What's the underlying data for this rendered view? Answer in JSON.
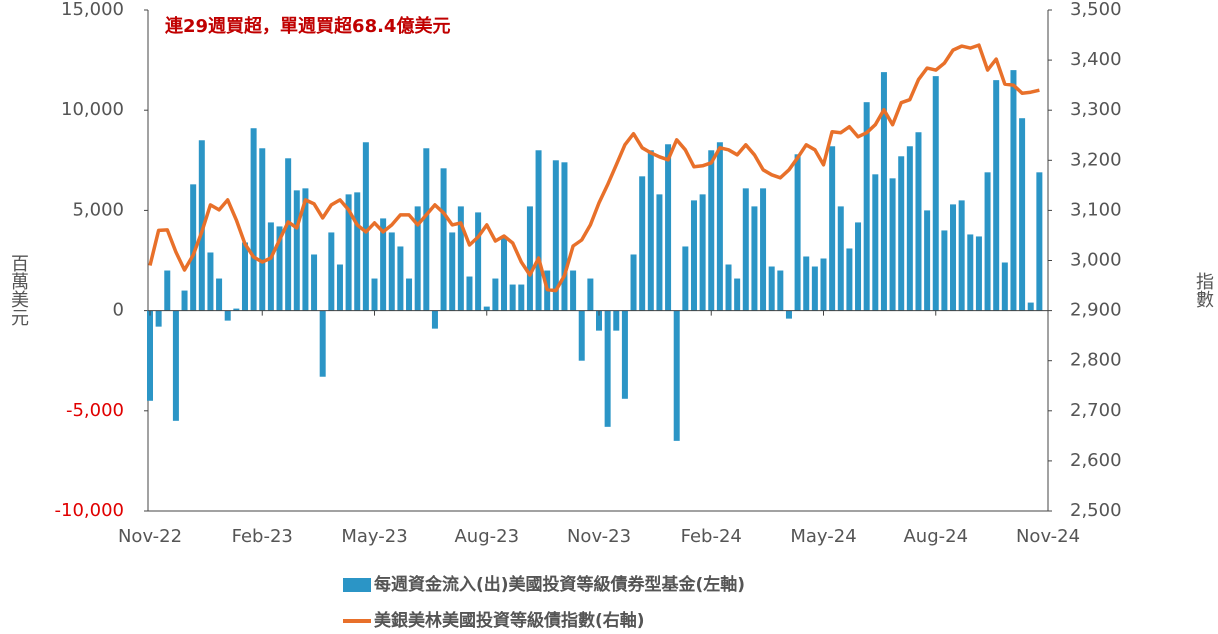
{
  "chart_data": {
    "type": "bar_line",
    "annotation": "連29週買超，單週買超68.4億美元",
    "ylabel": "百萬美元",
    "y2label": "指數",
    "categories": [
      "Nov-22",
      null,
      null,
      null,
      null,
      null,
      null,
      null,
      null,
      null,
      null,
      null,
      null,
      "Feb-23",
      null,
      null,
      null,
      null,
      null,
      null,
      null,
      null,
      null,
      null,
      null,
      null,
      "May-23",
      null,
      null,
      null,
      null,
      null,
      null,
      null,
      null,
      null,
      null,
      null,
      null,
      "Aug-23",
      null,
      null,
      null,
      null,
      null,
      null,
      null,
      null,
      null,
      null,
      null,
      null,
      "Nov-23",
      null,
      null,
      null,
      null,
      null,
      null,
      null,
      null,
      null,
      null,
      null,
      null,
      "Feb-24",
      null,
      null,
      null,
      null,
      null,
      null,
      null,
      null,
      null,
      null,
      null,
      null,
      "May-24",
      null,
      null,
      null,
      null,
      null,
      null,
      null,
      null,
      null,
      null,
      null,
      null,
      "Aug-24",
      null,
      null,
      null,
      null,
      null,
      null,
      null,
      null,
      null,
      null,
      null,
      null,
      "Nov-24"
    ],
    "series": [
      {
        "name": "每週資金流入(出)美國投資等級債券型基金(左軸)",
        "type": "bar",
        "color": "#2b95c6",
        "values": [
          -4500,
          -800,
          2000,
          -5500,
          1000,
          6300,
          8500,
          2900,
          1600,
          -500,
          100,
          3400,
          9100,
          8100,
          4400,
          4200,
          7600,
          6000,
          6100,
          2800,
          -3300,
          3900,
          2300,
          5800,
          5900,
          8400,
          1600,
          4600,
          3900,
          3200,
          1600,
          5200,
          8100,
          -900,
          7100,
          3900,
          5200,
          1700,
          4900,
          200,
          1600,
          3700,
          1300,
          1300,
          5200,
          8000,
          2000,
          7500,
          7400,
          2000,
          -2500,
          1600,
          -1000,
          -5800,
          -1000,
          -4400,
          2800,
          6700,
          8000,
          5800,
          8300,
          -6500,
          3200,
          5500,
          5800,
          8000,
          8400,
          2300,
          1600,
          6100,
          5200,
          6100,
          2200,
          2000,
          -400,
          7800,
          2700,
          2200,
          2600,
          8200,
          5200,
          3100,
          4400,
          10400,
          6800,
          11900,
          6600,
          7700,
          8200,
          8900,
          5000,
          11700,
          4000,
          5300,
          5500,
          3800,
          3700,
          6900,
          11500,
          2400,
          12000,
          9600,
          400,
          6900,
          null
        ]
      },
      {
        "name": "美銀美林美國投資等級債指數(右軸)",
        "type": "line",
        "axis": "y2",
        "color": "#e8702a",
        "values": [
          2990,
          3060,
          3061,
          3017,
          2981,
          3011,
          3057,
          3111,
          3101,
          3121,
          3081,
          3033,
          3007,
          2997,
          3005,
          3041,
          3077,
          3065,
          3121,
          3113,
          3085,
          3111,
          3121,
          3101,
          3071,
          3057,
          3075,
          3057,
          3071,
          3091,
          3091,
          3071,
          3091,
          3111,
          3095,
          3071,
          3075,
          3031,
          3047,
          3071,
          3039,
          3049,
          3035,
          2997,
          2971,
          3005,
          2942,
          2940,
          2970,
          3029,
          3041,
          3071,
          3115,
          3151,
          3191,
          3231,
          3253,
          3225,
          3215,
          3207,
          3201,
          3241,
          3221,
          3187,
          3189,
          3195,
          3225,
          3221,
          3211,
          3231,
          3211,
          3181,
          3171,
          3165,
          3181,
          3205,
          3231,
          3221,
          3191,
          3257,
          3255,
          3267,
          3247,
          3255,
          3271,
          3301,
          3271,
          3315,
          3321,
          3361,
          3384,
          3380,
          3394,
          3420,
          3428,
          3424,
          3430,
          3380,
          3402,
          3352,
          3350,
          3334,
          3336,
          3340,
          null
        ]
      }
    ],
    "ylim": [
      -10000,
      15000
    ],
    "yticks": [
      {
        "value": -10000,
        "label": "-10,000"
      },
      {
        "value": -5000,
        "label": "-5,000"
      },
      0,
      {
        "value": 5000,
        "label": "5,000"
      },
      {
        "value": 10000,
        "label": "10,000"
      },
      {
        "value": 15000,
        "label": "15,000"
      }
    ],
    "negative_tick_color": "#e00000",
    "y2lim": [
      2500,
      3500
    ],
    "y2ticks": [
      {
        "value": 2500,
        "label": "2,500"
      },
      {
        "value": 2600,
        "label": "2,600"
      },
      {
        "value": 2700,
        "label": "2,700"
      },
      {
        "value": 2800,
        "label": "2,800"
      },
      {
        "value": 2900,
        "label": "2,900"
      },
      {
        "value": 3000,
        "label": "3,000"
      },
      {
        "value": 3100,
        "label": "3,100"
      },
      {
        "value": 3200,
        "label": "3,200"
      },
      {
        "value": 3300,
        "label": "3,300"
      },
      {
        "value": 3400,
        "label": "3,400"
      },
      {
        "value": 3500,
        "label": "3,500"
      }
    ],
    "grid": false
  }
}
